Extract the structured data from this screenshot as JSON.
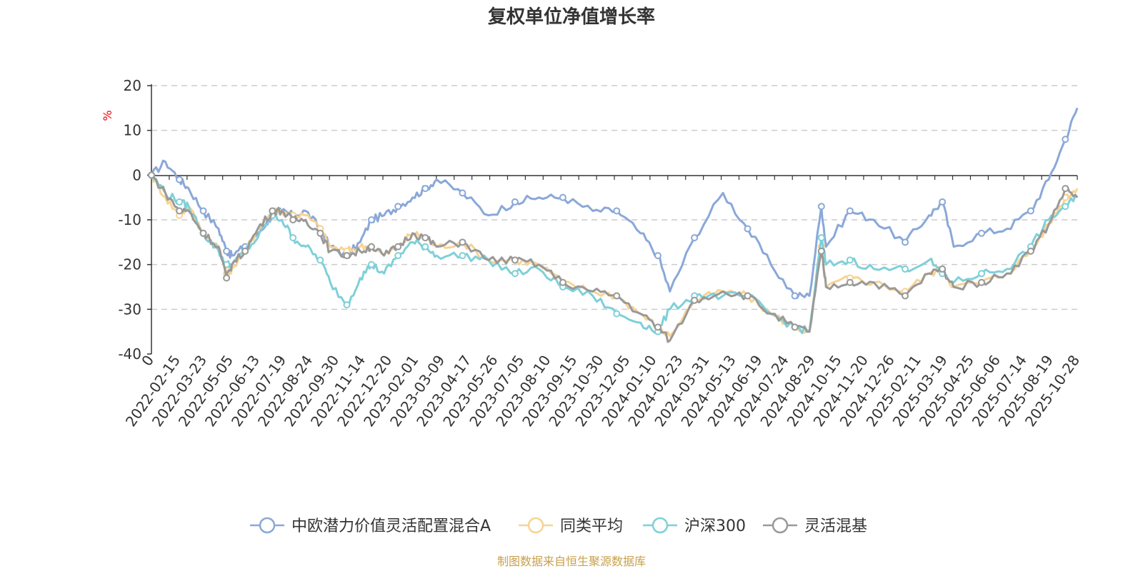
{
  "chart_data": {
    "type": "line",
    "title": "复权单位净值增长率",
    "ylabel": "%",
    "ylim": [
      -40,
      20
    ],
    "yticks": [
      20,
      10,
      0,
      -10,
      -20,
      -30,
      -40
    ],
    "grid": true,
    "legend_position": "bottom",
    "x_range": [
      "2022-01-04",
      "2025-10-28"
    ],
    "xtick_labels": [
      "0",
      "2022-02-15",
      "2022-03-23",
      "2022-05-05",
      "2022-06-13",
      "2022-07-19",
      "2022-08-24",
      "2022-09-30",
      "2022-11-14",
      "2022-12-20",
      "2023-02-01",
      "2023-03-09",
      "2023-04-17",
      "2023-05-26",
      "2023-07-05",
      "2023-08-10",
      "2023-09-15",
      "2023-10-30",
      "2023-12-05",
      "2024-01-10",
      "2024-02-23",
      "2024-03-31",
      "2024-05-13",
      "2024-06-19",
      "2024-07-24",
      "2024-08-29",
      "2024-10-15",
      "2024-11-20",
      "2024-12-26",
      "2025-02-11",
      "2025-03-19",
      "2025-04-25",
      "2025-06-06",
      "2025-07-14",
      "2025-08-19",
      "2025-10-28"
    ],
    "x": [
      "2022-01-04",
      "2022-01-25",
      "2022-02-15",
      "2022-03-01",
      "2022-03-23",
      "2022-04-15",
      "2022-04-27",
      "2022-05-05",
      "2022-05-25",
      "2022-06-13",
      "2022-07-05",
      "2022-07-19",
      "2022-08-05",
      "2022-08-24",
      "2022-09-15",
      "2022-09-30",
      "2022-10-25",
      "2022-11-14",
      "2022-12-01",
      "2022-12-20",
      "2023-01-10",
      "2023-02-01",
      "2023-02-20",
      "2023-03-09",
      "2023-04-17",
      "2023-05-26",
      "2023-07-05",
      "2023-08-10",
      "2023-09-15",
      "2023-10-30",
      "2023-12-05",
      "2024-01-10",
      "2024-02-05",
      "2024-02-23",
      "2024-03-31",
      "2024-05-13",
      "2024-06-19",
      "2024-07-24",
      "2024-08-29",
      "2024-09-20",
      "2024-10-08",
      "2024-10-15",
      "2024-11-20",
      "2024-12-26",
      "2025-02-11",
      "2025-03-19",
      "2025-04-08",
      "2025-04-25",
      "2025-06-06",
      "2025-07-14",
      "2025-08-19",
      "2025-09-15",
      "2025-10-10",
      "2025-10-28"
    ],
    "series": [
      {
        "name": "中欧潜力价值灵活配置混合A",
        "color": "#8aa8d8",
        "values": [
          0,
          3,
          -1,
          -3,
          -8,
          -12,
          -17,
          -18,
          -16,
          -13,
          -9,
          -8,
          -9,
          -8,
          -12,
          -16,
          -18,
          -15,
          -10,
          -9,
          -7,
          -5,
          -3,
          -1,
          -4,
          -9,
          -6,
          -5,
          -5,
          -8,
          -8,
          -13,
          -18,
          -26,
          -14,
          -4,
          -12,
          -20,
          -27,
          -27,
          -7,
          -16,
          -8,
          -10,
          -15,
          -9,
          -6,
          -16,
          -13,
          -12,
          -8,
          -1,
          8,
          15
        ]
      },
      {
        "name": "同类平均",
        "color": "#f8d394",
        "values": [
          0,
          -5,
          -9,
          -7,
          -13,
          -16,
          -22,
          -21,
          -17,
          -12,
          -8,
          -8,
          -9,
          -9,
          -12,
          -16,
          -17,
          -16,
          -16,
          -18,
          -16,
          -13,
          -14,
          -16,
          -15,
          -19,
          -19,
          -20,
          -24,
          -26,
          -27,
          -31,
          -34,
          -36,
          -28,
          -26,
          -27,
          -31,
          -34,
          -35,
          -16,
          -25,
          -23,
          -24,
          -26,
          -22,
          -21,
          -25,
          -24,
          -22,
          -17,
          -11,
          -5,
          -3
        ]
      },
      {
        "name": "沪深300",
        "color": "#7fd0d8",
        "values": [
          0,
          -4,
          -6,
          -7,
          -13,
          -17,
          -20,
          -20,
          -17,
          -14,
          -9,
          -10,
          -14,
          -16,
          -19,
          -24,
          -29,
          -23,
          -20,
          -22,
          -18,
          -15,
          -16,
          -18,
          -18,
          -19,
          -22,
          -21,
          -25,
          -27,
          -31,
          -33,
          -35,
          -30,
          -27,
          -27,
          -27,
          -31,
          -34,
          -35,
          -14,
          -20,
          -19,
          -21,
          -21,
          -19,
          -22,
          -24,
          -22,
          -21,
          -16,
          -10,
          -7,
          -5
        ]
      },
      {
        "name": "灵活混基",
        "color": "#999999",
        "values": [
          0,
          -4,
          -8,
          -8,
          -13,
          -16,
          -23,
          -20,
          -17,
          -12,
          -8,
          -8,
          -10,
          -10,
          -13,
          -17,
          -18,
          -17,
          -16,
          -18,
          -16,
          -13,
          -14,
          -16,
          -15,
          -19,
          -19,
          -20,
          -24,
          -26,
          -27,
          -31,
          -34,
          -37,
          -28,
          -26,
          -27,
          -31,
          -34,
          -35,
          -17,
          -25,
          -24,
          -24,
          -27,
          -22,
          -21,
          -25,
          -24,
          -22,
          -17,
          -11,
          -3,
          -5
        ]
      }
    ]
  },
  "source_note": "制图数据来自恒生聚源数据库"
}
